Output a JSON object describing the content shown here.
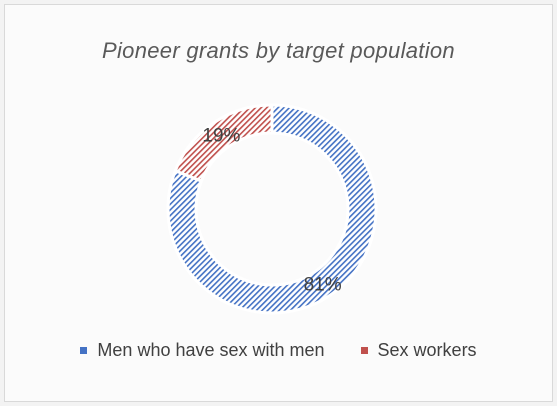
{
  "chart_data": {
    "type": "pie",
    "donut": true,
    "title": "Pioneer grants by target population",
    "categories": [
      "Men who have sex with men",
      "Sex workers"
    ],
    "values": [
      81,
      19
    ],
    "data_labels": [
      "81%",
      "19%"
    ],
    "colors": [
      "#4472c4",
      "#c0504d"
    ],
    "legend": "bottom",
    "fill": "diagonal-hatch"
  }
}
